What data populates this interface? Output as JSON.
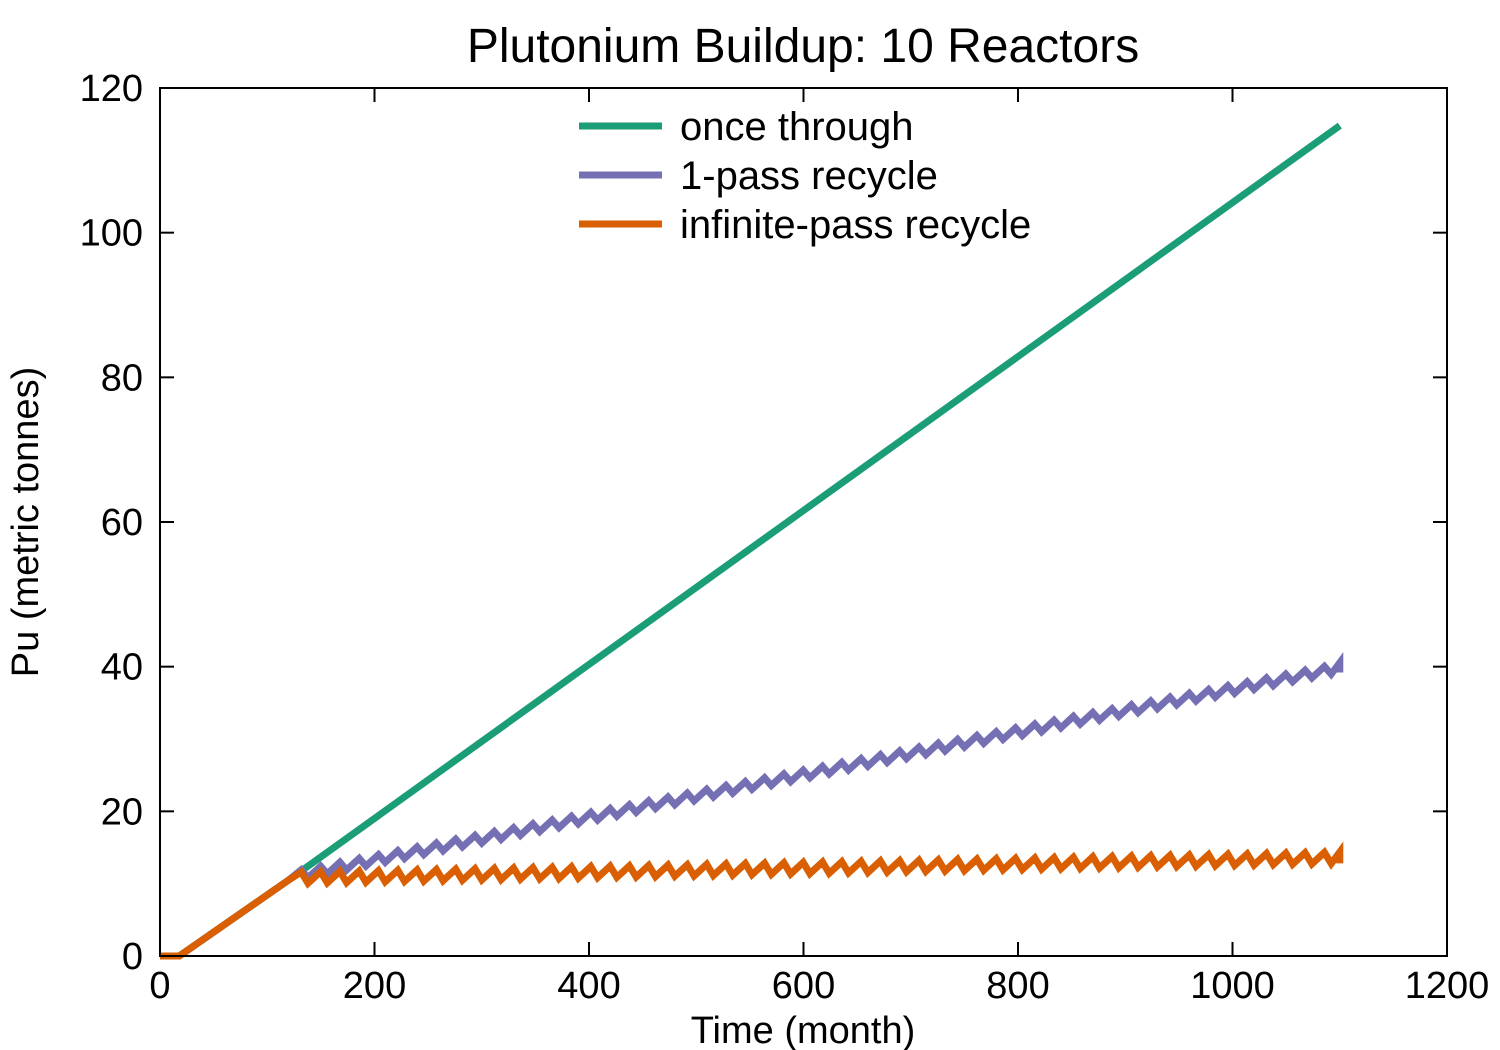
{
  "chart_data": {
    "type": "line",
    "title": "Plutonium Buildup: 10 Reactors",
    "xlabel": "Time (month)",
    "ylabel": "Pu (metric tonnes)",
    "xlim": [
      0,
      1200
    ],
    "ylim": [
      0,
      120
    ],
    "xticks": [
      0,
      200,
      400,
      600,
      800,
      1000,
      1200
    ],
    "yticks": [
      0,
      20,
      40,
      60,
      80,
      100,
      120
    ],
    "grid": false,
    "legend": "top-center",
    "series": [
      {
        "name": "once through",
        "color": "#1b9e77",
        "x": [
          0,
          18,
          120,
          1100
        ],
        "y": [
          0,
          0,
          10.5,
          114.8
        ]
      },
      {
        "name": "1-pass recycle",
        "color": "#7570b3",
        "sawtooth": {
          "start": 120,
          "end": 1100,
          "period": 18,
          "base_start": 10.3,
          "base_end": 39.2,
          "amplitude": 1.6
        },
        "x": [
          0,
          18,
          120,
          200,
          300,
          400,
          500,
          600,
          700,
          800,
          900,
          1000,
          1100
        ],
        "y": [
          0,
          0,
          10.5,
          11.2,
          15.2,
          18.2,
          21.2,
          24.1,
          27.0,
          30.0,
          33.2,
          36.2,
          39.2
        ]
      },
      {
        "name": "infinite-pass recycle",
        "color": "#d95f02",
        "sawtooth": {
          "start": 120,
          "end": 1100,
          "period": 18,
          "base_start": 10.0,
          "base_end": 12.8,
          "amplitude": 1.6
        },
        "x": [
          0,
          18,
          120,
          200,
          300,
          400,
          500,
          600,
          700,
          800,
          900,
          1000,
          1100
        ],
        "y": [
          0,
          0,
          10.5,
          11.5,
          11.8,
          11.9,
          12.0,
          12.1,
          12.2,
          12.4,
          12.5,
          12.7,
          12.8
        ]
      }
    ]
  }
}
